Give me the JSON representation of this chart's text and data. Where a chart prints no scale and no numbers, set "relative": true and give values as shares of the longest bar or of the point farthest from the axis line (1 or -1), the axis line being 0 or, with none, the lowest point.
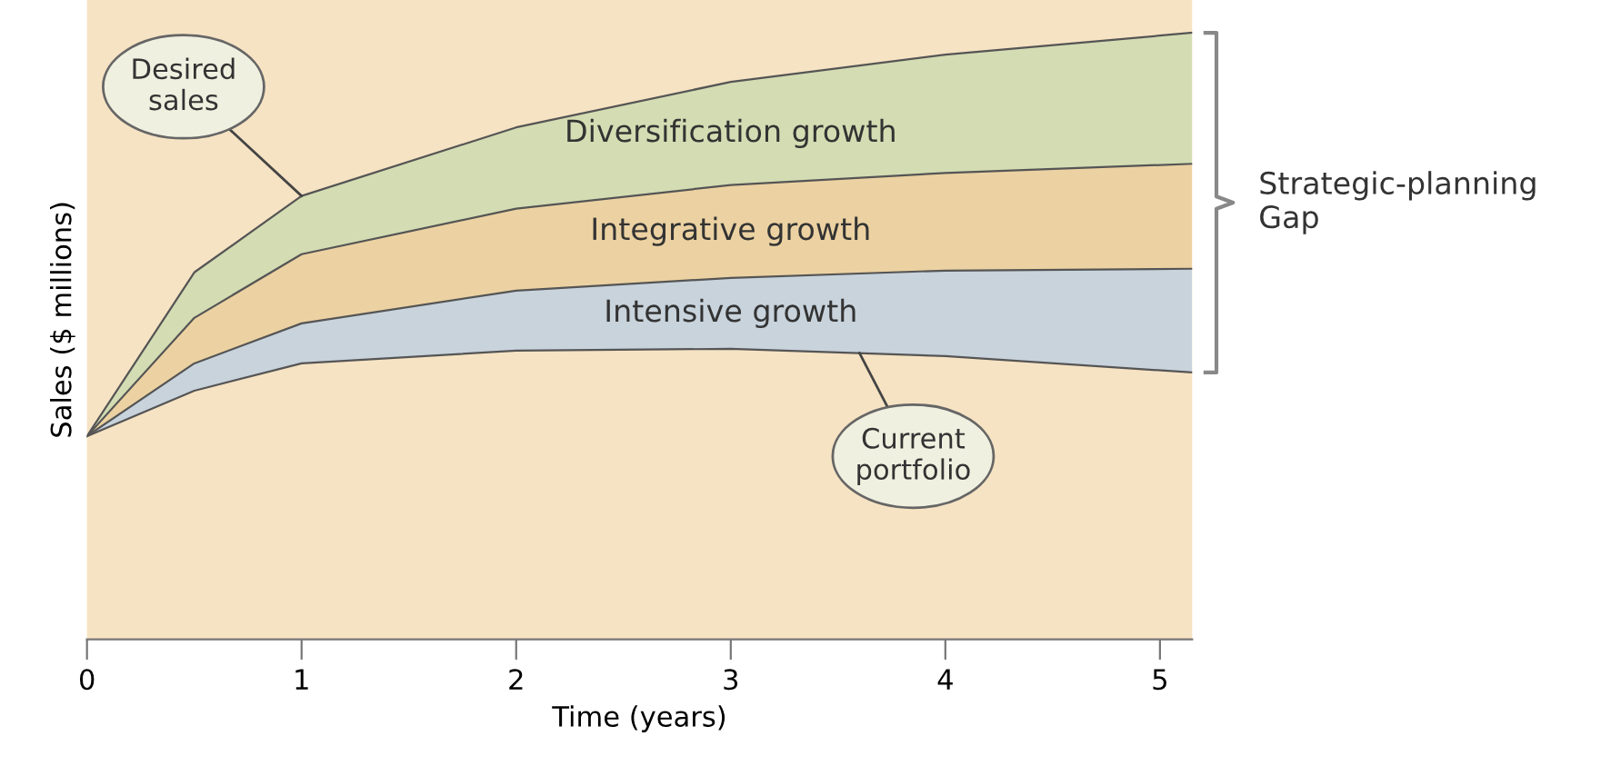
{
  "chart_data": {
    "type": "area",
    "stacked": true,
    "relative": true,
    "xlabel": "Time (years)",
    "ylabel": "Sales ($ millions)",
    "x": [
      0,
      0.5,
      1,
      2,
      3,
      4,
      5.15
    ],
    "xlim": [
      0,
      5.15
    ],
    "xticks": [
      0,
      1,
      2,
      3,
      4,
      5
    ],
    "series": [
      {
        "color": "#f6e3c3",
        "values": [
          0.335,
          0.41,
          0.455,
          0.476,
          0.479,
          0.467,
          0.44
        ]
      },
      {
        "name": "Intensive growth",
        "color": "#c8d3dc",
        "values": [
          0,
          0.045,
          0.066,
          0.099,
          0.117,
          0.141,
          0.171
        ]
      },
      {
        "name": "Integrative growth",
        "color": "#ecd2a2",
        "values": [
          0,
          0.075,
          0.114,
          0.135,
          0.153,
          0.161,
          0.173
        ]
      },
      {
        "name": "Diversification growth",
        "color": "#d4dcb3",
        "values": [
          0,
          0.075,
          0.096,
          0.134,
          0.17,
          0.195,
          0.216
        ]
      }
    ],
    "annotations": [
      {
        "text": "Desired sales",
        "x": 1,
        "y": 0.731
      },
      {
        "text": "Current portfolio",
        "x": 3.6,
        "y": 0.472
      },
      "Strategic-planning\nGap"
    ],
    "grid": false
  }
}
